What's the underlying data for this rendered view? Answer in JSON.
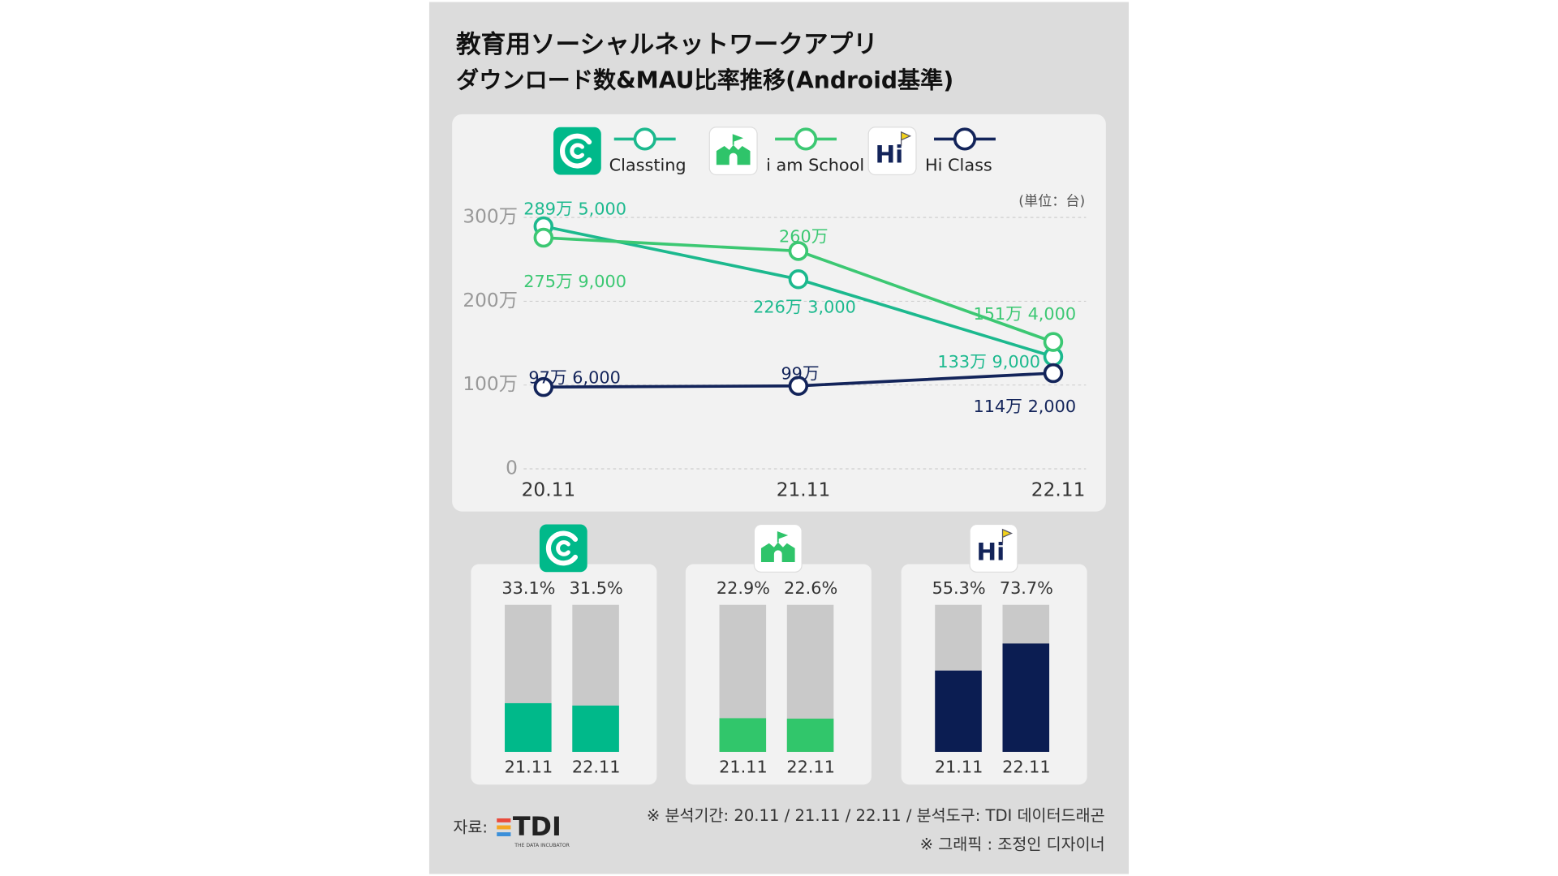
{
  "title": "教育用ソーシャルネットワークアプリ",
  "subtitle": "ダウンロード数&MAU比率推移(Android基準)",
  "logo_text": "Hi",
  "chart_data": [
    {
      "type": "line",
      "unit": "(単位：台)",
      "categories": [
        "20.11",
        "21.11",
        "22.11"
      ],
      "ylim": [
        0,
        3000000
      ],
      "yticks": [
        0,
        {
          "value": 1000000,
          "label": "100万"
        },
        {
          "value": 2000000,
          "label": "200万"
        },
        {
          "value": 3000000,
          "label": "300万"
        }
      ],
      "grid": true,
      "series": [
        {
          "name": "Classting",
          "color": "#1cb98e",
          "values": [
            2895000,
            2263000,
            1339000
          ],
          "value_labels": [
            "289万 5,000",
            "226万 3,000",
            "133万 9,000"
          ]
        },
        {
          "name": "i am School",
          "color": "#3cc873",
          "values": [
            2759000,
            2600000,
            1514000
          ],
          "value_labels": [
            "275万 9,000",
            "260万",
            "151万 4,000"
          ]
        },
        {
          "name": "Hi Class",
          "color": "#13245a",
          "values": [
            976000,
            990000,
            1142000
          ],
          "value_labels": [
            "97万 6,000",
            "99万",
            "114万 2,000"
          ]
        }
      ]
    },
    {
      "type": "bar",
      "categories": [
        "21.11",
        "22.11"
      ],
      "values": [
        33.1,
        31.5
      ],
      "value_labels": [
        "33.1%",
        "31.5%"
      ],
      "ylim": [
        0,
        100
      ],
      "color": "#00b98a"
    },
    {
      "type": "bar",
      "categories": [
        "21.11",
        "22.11"
      ],
      "values": [
        22.9,
        22.6
      ],
      "value_labels": [
        "22.9%",
        "22.6%"
      ],
      "ylim": [
        0,
        100
      ],
      "color": "#31c66b"
    },
    {
      "type": "bar",
      "categories": [
        "21.11",
        "22.11"
      ],
      "values": [
        55.3,
        73.7
      ],
      "value_labels": [
        "55.3%",
        "73.7%"
      ],
      "ylim": [
        0,
        100
      ],
      "color": "#0b1d52"
    }
  ],
  "footer": {
    "source_label": "자료:",
    "source_logo": "TDI",
    "source_logo_sub": "THE DATA INCUBATOR",
    "note1": "※ 분석기간: 20.11 / 21.11 / 22.11 / 분석도구: TDI 데이터드래곤",
    "note2": "※ 그래픽 : 조정인 디자이너"
  }
}
